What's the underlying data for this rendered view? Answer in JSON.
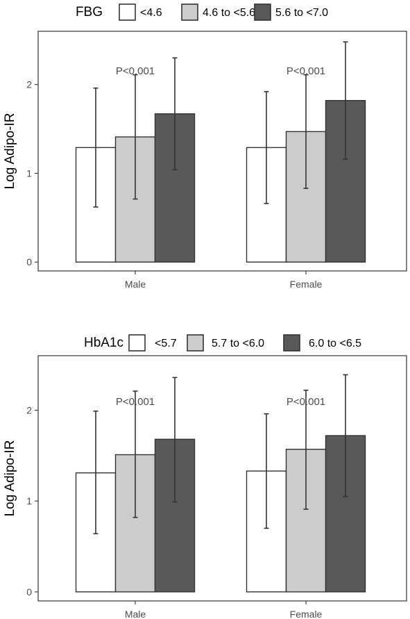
{
  "chart_data": [
    {
      "type": "bar",
      "legend": {
        "title": "FBG",
        "entries": [
          "<4.6",
          "4.6 to <5.6",
          "5.6 to <7.0"
        ],
        "colors": [
          "#ffffff",
          "#cccccc",
          "#595959"
        ],
        "placement": "top"
      },
      "categories": [
        "Male",
        "Female"
      ],
      "series": [
        {
          "name": "<4.6",
          "values": [
            1.29,
            1.29
          ],
          "err_low": [
            0.62,
            0.66
          ],
          "err_high": [
            1.96,
            1.92
          ]
        },
        {
          "name": "4.6 to <5.6",
          "values": [
            1.41,
            1.47
          ],
          "err_low": [
            0.71,
            0.83
          ],
          "err_high": [
            2.11,
            2.11
          ]
        },
        {
          "name": "5.6 to <7.0",
          "values": [
            1.67,
            1.82
          ],
          "err_low": [
            1.04,
            1.16
          ],
          "err_high": [
            2.3,
            2.48
          ]
        }
      ],
      "annotations": [
        "P<0.001",
        "P<0.001"
      ],
      "ylabel": "Log Adipo-IR",
      "yticks": [
        "0",
        "1",
        "2"
      ],
      "ylim": [
        -0.1,
        2.6
      ],
      "grid": false
    },
    {
      "type": "bar",
      "legend": {
        "title": "HbA1c",
        "entries": [
          "<5.7",
          "5.7 to <6.0",
          "6.0 to <6.5"
        ],
        "colors": [
          "#ffffff",
          "#cccccc",
          "#595959"
        ],
        "placement": "top"
      },
      "categories": [
        "Male",
        "Female"
      ],
      "series": [
        {
          "name": "<5.7",
          "values": [
            1.31,
            1.33
          ],
          "err_low": [
            0.64,
            0.7
          ],
          "err_high": [
            1.99,
            1.96
          ]
        },
        {
          "name": "5.7 to <6.0",
          "values": [
            1.51,
            1.57
          ],
          "err_low": [
            0.82,
            0.91
          ],
          "err_high": [
            2.21,
            2.22
          ]
        },
        {
          "name": "6.0 to <6.5",
          "values": [
            1.68,
            1.72
          ],
          "err_low": [
            0.99,
            1.05
          ],
          "err_high": [
            2.36,
            2.39
          ]
        }
      ],
      "annotations": [
        "P<0.001",
        "P<0.001"
      ],
      "ylabel": "Log Adipo-IR",
      "yticks": [
        "0",
        "1",
        "2"
      ],
      "ylim": [
        -0.1,
        2.6
      ],
      "grid": false
    }
  ]
}
